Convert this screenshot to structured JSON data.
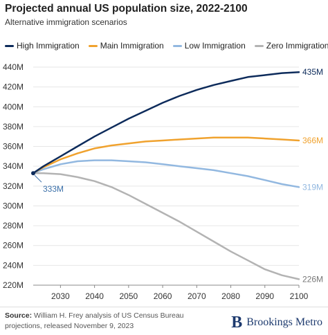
{
  "header": {
    "title": "Projected annual US population size, 2022-2100",
    "subtitle": "Alternative immigration scenarios"
  },
  "footer": {
    "source_label": "Source:",
    "source_text": "William H. Frey analysis of US Census Bureau projections, released November 9, 2023",
    "brand_mark": "B",
    "brand_name": "Brookings Metro"
  },
  "colors": {
    "high": "#0d2b5b",
    "main": "#f0a22e",
    "low": "#92b8e0",
    "zero": "#b3b3b3",
    "grid": "#e6e6e6",
    "axis_text": "#333333"
  },
  "chart_data": {
    "type": "line",
    "title": "Projected annual US population size, 2022-2100",
    "subtitle": "Alternative immigration scenarios",
    "xlabel": "",
    "ylabel": "",
    "xlim": [
      2022,
      2100
    ],
    "ylim": [
      220,
      440
    ],
    "x_ticks": [
      2030,
      2040,
      2050,
      2060,
      2070,
      2080,
      2090,
      2100
    ],
    "x_tick_labels": [
      "2030",
      "2040",
      "2050",
      "2060",
      "2070",
      "2080",
      "2090",
      "2100"
    ],
    "y_ticks": [
      220,
      240,
      260,
      280,
      300,
      320,
      340,
      360,
      380,
      400,
      420,
      440
    ],
    "y_tick_labels": [
      "220M",
      "240M",
      "260M",
      "280M",
      "300M",
      "320M",
      "340M",
      "360M",
      "380M",
      "400M",
      "420M",
      "440M"
    ],
    "grid": "horizontal",
    "legend_position": "top",
    "series": [
      {
        "name": "High Immigration",
        "color_key": "high",
        "end_label": "435M",
        "points": [
          [
            2022,
            333
          ],
          [
            2025,
            340
          ],
          [
            2030,
            350
          ],
          [
            2035,
            360
          ],
          [
            2040,
            370
          ],
          [
            2045,
            379
          ],
          [
            2050,
            388
          ],
          [
            2055,
            396
          ],
          [
            2060,
            404
          ],
          [
            2065,
            411
          ],
          [
            2070,
            417
          ],
          [
            2075,
            422
          ],
          [
            2080,
            426
          ],
          [
            2085,
            430
          ],
          [
            2090,
            432
          ],
          [
            2095,
            434
          ],
          [
            2100,
            435
          ]
        ]
      },
      {
        "name": "Main Immigration",
        "color_key": "main",
        "end_label": "366M",
        "points": [
          [
            2022,
            333
          ],
          [
            2025,
            339
          ],
          [
            2030,
            347
          ],
          [
            2035,
            353
          ],
          [
            2040,
            358
          ],
          [
            2045,
            361
          ],
          [
            2050,
            363
          ],
          [
            2055,
            365
          ],
          [
            2060,
            366
          ],
          [
            2065,
            367
          ],
          [
            2070,
            368
          ],
          [
            2075,
            369
          ],
          [
            2080,
            369
          ],
          [
            2085,
            369
          ],
          [
            2090,
            368
          ],
          [
            2095,
            367
          ],
          [
            2100,
            366
          ]
        ]
      },
      {
        "name": "Low Immigration",
        "color_key": "low",
        "end_label": "319M",
        "points": [
          [
            2022,
            333
          ],
          [
            2025,
            337
          ],
          [
            2030,
            342
          ],
          [
            2035,
            345
          ],
          [
            2040,
            346
          ],
          [
            2045,
            346
          ],
          [
            2050,
            345
          ],
          [
            2055,
            344
          ],
          [
            2060,
            342
          ],
          [
            2065,
            340
          ],
          [
            2070,
            338
          ],
          [
            2075,
            336
          ],
          [
            2080,
            333
          ],
          [
            2085,
            330
          ],
          [
            2090,
            326
          ],
          [
            2095,
            322
          ],
          [
            2100,
            319
          ]
        ]
      },
      {
        "name": "Zero Immigration",
        "color_key": "zero",
        "end_label": "226M",
        "points": [
          [
            2022,
            333
          ],
          [
            2025,
            333
          ],
          [
            2030,
            332
          ],
          [
            2035,
            329
          ],
          [
            2040,
            325
          ],
          [
            2045,
            319
          ],
          [
            2050,
            311
          ],
          [
            2055,
            302
          ],
          [
            2060,
            293
          ],
          [
            2065,
            284
          ],
          [
            2070,
            274
          ],
          [
            2075,
            264
          ],
          [
            2080,
            254
          ],
          [
            2085,
            245
          ],
          [
            2090,
            236
          ],
          [
            2095,
            230
          ],
          [
            2100,
            226
          ]
        ]
      }
    ],
    "annotations": [
      {
        "text": "333M",
        "x": 2022,
        "y": 333
      }
    ]
  }
}
